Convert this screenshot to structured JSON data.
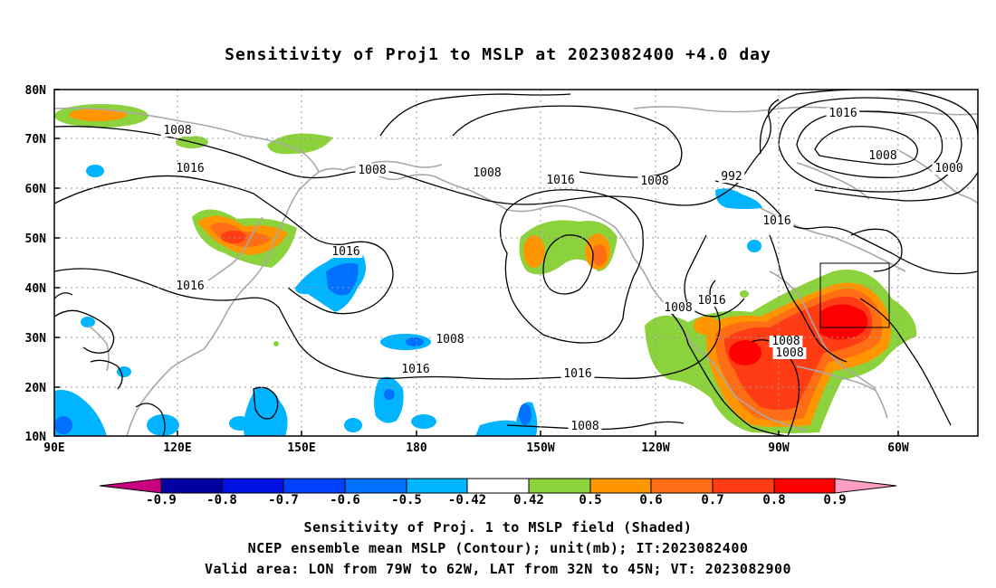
{
  "title": "Sensitivity of Proj1 to MSLP at 2023082400 +4.0 day",
  "map": {
    "lat_ticks": [
      "80N",
      "70N",
      "60N",
      "50N",
      "40N",
      "30N",
      "20N",
      "10N"
    ],
    "lon_ticks": [
      "90E",
      "120E",
      "150E",
      "180",
      "150W",
      "120W",
      "90W",
      "60W"
    ],
    "contour_labels": [
      "1008",
      "1016",
      "1008",
      "1008",
      "1016",
      "1008",
      "1016",
      "1008",
      "1000",
      "992",
      "1016",
      "1016",
      "1008",
      "1016",
      "1016",
      "1016",
      "1016",
      "1008",
      "1008",
      "1008",
      "1008",
      "1008"
    ],
    "valid_area": {
      "lon_from": "79W",
      "lon_to": "62W",
      "lat_from": "32N",
      "lat_to": "45N"
    }
  },
  "colorbar": {
    "labels": [
      "-0.9",
      "-0.8",
      "-0.7",
      "-0.6",
      "-0.5",
      "-0.42",
      "0.42",
      "0.5",
      "0.6",
      "0.7",
      "0.8",
      "0.9"
    ],
    "colors": [
      "#c8007f",
      "#0000a0",
      "#0010e0",
      "#0040ff",
      "#0070ff",
      "#00b4ff",
      "#ffffff",
      "#8cd23c",
      "#ff9600",
      "#ff6e14",
      "#ff3c14",
      "#ff0000",
      "#ff9ec4"
    ]
  },
  "caption": {
    "line1": "Sensitivity of Proj. 1 to MSLP field (Shaded)",
    "line2": "NCEP ensemble mean MSLP (Contour); unit(mb); IT:2023082400",
    "line3": "Valid area: LON from 79W to 62W, LAT from 32N to 45N; VT: 2023082900"
  }
}
